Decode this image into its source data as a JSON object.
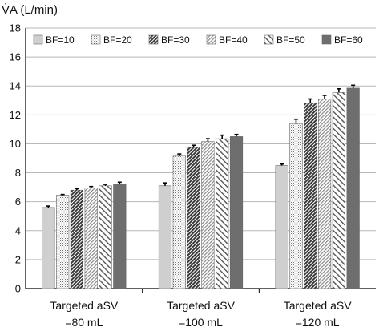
{
  "chart_data": {
    "type": "bar",
    "ylabel": "V̇A (L/min)",
    "ylim": [
      0,
      18
    ],
    "yticks": [
      "0",
      "2",
      "4",
      "6",
      "8",
      "10",
      "12",
      "14",
      "16",
      "18"
    ],
    "categories": [
      [
        "Targeted aSV",
        "=80 mL"
      ],
      [
        "Targeted aSV",
        "=100 mL"
      ],
      [
        "Targeted aSV",
        "=120 mL"
      ]
    ],
    "grid": true,
    "legend_position": "top",
    "series": [
      {
        "name": "BF=10",
        "values": [
          5.6,
          7.1,
          8.5
        ],
        "errors": [
          0.1,
          0.2,
          0.1
        ],
        "pattern": "light-gray"
      },
      {
        "name": "BF=20",
        "values": [
          6.45,
          9.15,
          11.4
        ],
        "errors": [
          0.05,
          0.15,
          0.3
        ],
        "pattern": "dots"
      },
      {
        "name": "BF=30",
        "values": [
          6.8,
          9.75,
          12.8
        ],
        "errors": [
          0.1,
          0.15,
          0.3
        ],
        "pattern": "dense-diagonal"
      },
      {
        "name": "BF=40",
        "values": [
          6.95,
          10.15,
          13.1
        ],
        "errors": [
          0.1,
          0.2,
          0.25
        ],
        "pattern": "light-diagonal"
      },
      {
        "name": "BF=50",
        "values": [
          7.1,
          10.35,
          13.55
        ],
        "errors": [
          0.1,
          0.25,
          0.25
        ],
        "pattern": "hatch-backward"
      },
      {
        "name": "BF=60",
        "values": [
          7.2,
          10.5,
          13.85
        ],
        "errors": [
          0.15,
          0.15,
          0.2
        ],
        "pattern": "dark-gray"
      }
    ],
    "colors": {
      "axis": "#000000",
      "grid": "#b8b8b8",
      "error_bar": "#000000"
    }
  }
}
